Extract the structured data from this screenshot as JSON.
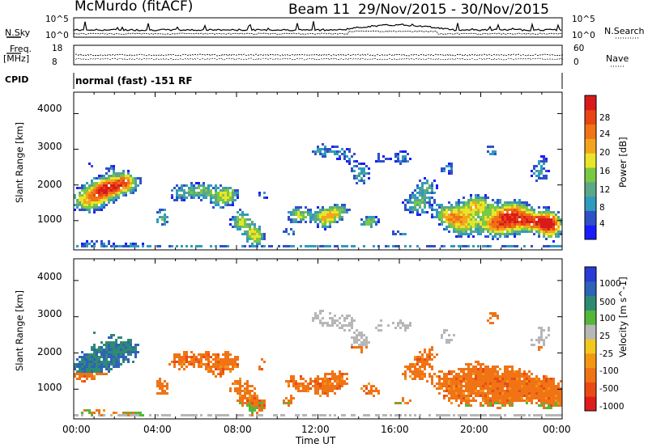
{
  "header": {
    "site": "McMurdo (fitACF)",
    "beam": "Beam 11",
    "dates": "29/Nov/2015 - 30/Nov/2015"
  },
  "noise_panel": {
    "left_label": "N.Sky",
    "right_label": "N.Search",
    "ticks_left": [
      "10^5",
      "10^0"
    ],
    "ticks_right": [
      "10^5",
      "10^0"
    ]
  },
  "freq_panel": {
    "left_label_1": "Freq.",
    "left_label_2": "[MHz]",
    "ticks_left": [
      "18",
      "8"
    ],
    "ticks_right": [
      "60",
      "0"
    ],
    "right_label": "Nave"
  },
  "cpid": {
    "label": "CPID",
    "value": "normal (fast) -151 RF"
  },
  "chart_data": [
    {
      "type": "heatmap",
      "title": "",
      "xlabel": "Time UT",
      "ylabel": "Slant Range [km]",
      "x_ticks": [
        "00:00",
        "04:00",
        "08:00",
        "12:00",
        "16:00",
        "20:00",
        "00:00"
      ],
      "y_ticks": [
        "1000",
        "2000",
        "3000",
        "4000"
      ],
      "ylim": [
        180,
        4600
      ],
      "colorbar": {
        "label": "Power [dB]",
        "ticks": [
          "4",
          "8",
          "12",
          "16",
          "20",
          "24",
          "28"
        ],
        "colors": [
          "#1a1aff",
          "#3050c8",
          "#2f9bbd",
          "#5aa78a",
          "#7ac943",
          "#e9e52a",
          "#f2a51d",
          "#f07316",
          "#e84515",
          "#d91a1a"
        ]
      },
      "description_values": "power echoes concentrated 500-2500 km, strong near 00:00-03:00 and 18:00-24:00"
    },
    {
      "type": "heatmap",
      "title": "",
      "xlabel": "Time UT",
      "ylabel": "Slant Range [km]",
      "x_ticks": [
        "00:00",
        "04:00",
        "08:00",
        "12:00",
        "16:00",
        "20:00",
        "00:00"
      ],
      "y_ticks": [
        "1000",
        "2000",
        "3000",
        "4000"
      ],
      "ylim": [
        180,
        4600
      ],
      "colorbar": {
        "label": "Velocity [m s^-1]",
        "ticks": [
          "1000",
          "500",
          "100",
          "25",
          "-25",
          "-100",
          "-500",
          "-1000"
        ],
        "colors": [
          "#2a3cd6",
          "#2e63b8",
          "#2f8a72",
          "#55b63a",
          "#b7b7b7",
          "#f2c81d",
          "#f29613",
          "#f07316",
          "#ea4a14",
          "#e01b1b"
        ]
      }
    }
  ],
  "x_axis_title": "Time UT"
}
